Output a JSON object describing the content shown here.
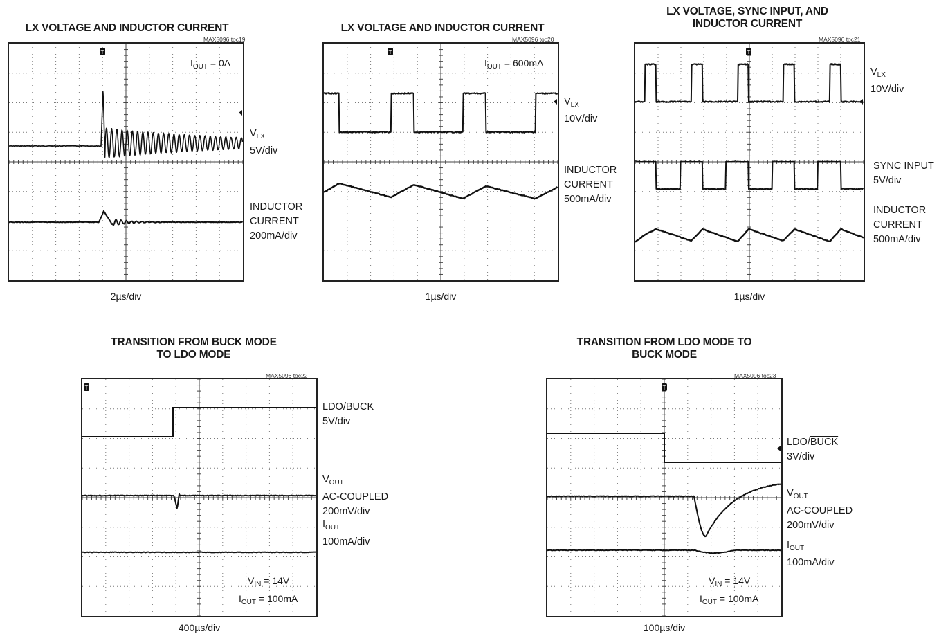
{
  "chart_data": [
    {
      "type": "line",
      "title": "LX VOLTAGE AND INDUCTOR CURRENT",
      "toc": "MAX5096 toc19",
      "time_div": "2µs/div",
      "annotation": {
        "main": "I",
        "sub": "OUT",
        "rest": " = 0A"
      },
      "series": [
        {
          "name": {
            "main": "V",
            "sub": "LX"
          },
          "scale": "5V/div"
        },
        {
          "name": "INDUCTOR CURRENT",
          "scale": "200mA/div"
        }
      ]
    },
    {
      "type": "line",
      "title": "LX VOLTAGE AND INDUCTOR CURRENT",
      "toc": "MAX5096 toc20",
      "time_div": "1µs/div",
      "annotation": {
        "main": "I",
        "sub": "OUT",
        "rest": " = 600mA"
      },
      "series": [
        {
          "name": {
            "main": "V",
            "sub": "LX"
          },
          "scale": "10V/div"
        },
        {
          "name": "INDUCTOR CURRENT",
          "scale": "500mA/div"
        }
      ]
    },
    {
      "type": "line",
      "title": "LX VOLTAGE, SYNC INPUT, AND INDUCTOR CURRENT",
      "toc": "MAX5096 toc21",
      "time_div": "1µs/div",
      "series": [
        {
          "name": {
            "main": "V",
            "sub": "LX"
          },
          "scale": "10V/div"
        },
        {
          "name": "SYNC INPUT",
          "scale": "5V/div"
        },
        {
          "name": "INDUCTOR CURRENT",
          "scale": "500mA/div"
        }
      ]
    },
    {
      "type": "line",
      "title": "TRANSITION FROM BUCK MODE TO LDO MODE",
      "toc": "MAX5096 toc22",
      "time_div": "400µs/div",
      "conditions": [
        {
          "main": "V",
          "sub": "IN",
          "rest": " = 14V"
        },
        {
          "main": "I",
          "sub": "OUT",
          "rest": " = 100mA"
        }
      ],
      "series": [
        {
          "name": {
            "pre": "LDO/",
            "over": "BUCK"
          },
          "scale": "5V/div"
        },
        {
          "name": {
            "main": "V",
            "sub": "OUT"
          },
          "extra": "AC-COUPLED",
          "scale": "200mV/div"
        },
        {
          "name": {
            "main": "I",
            "sub": "OUT"
          },
          "scale": "100mA/div"
        }
      ]
    },
    {
      "type": "line",
      "title": "TRANSITION FROM LDO MODE TO BUCK MODE",
      "toc": "MAX5096 toc23",
      "time_div": "100µs/div",
      "conditions": [
        {
          "main": "V",
          "sub": "IN",
          "rest": " = 14V"
        },
        {
          "main": "I",
          "sub": "OUT",
          "rest": " = 100mA"
        }
      ],
      "series": [
        {
          "name": {
            "pre": "LDO/",
            "over": "BUCK"
          },
          "scale": "3V/div"
        },
        {
          "name": {
            "main": "V",
            "sub": "OUT"
          },
          "extra": "AC-COUPLED",
          "scale": "200mV/div"
        },
        {
          "name": {
            "main": "I",
            "sub": "OUT"
          },
          "scale": "100mA/div"
        }
      ]
    }
  ]
}
